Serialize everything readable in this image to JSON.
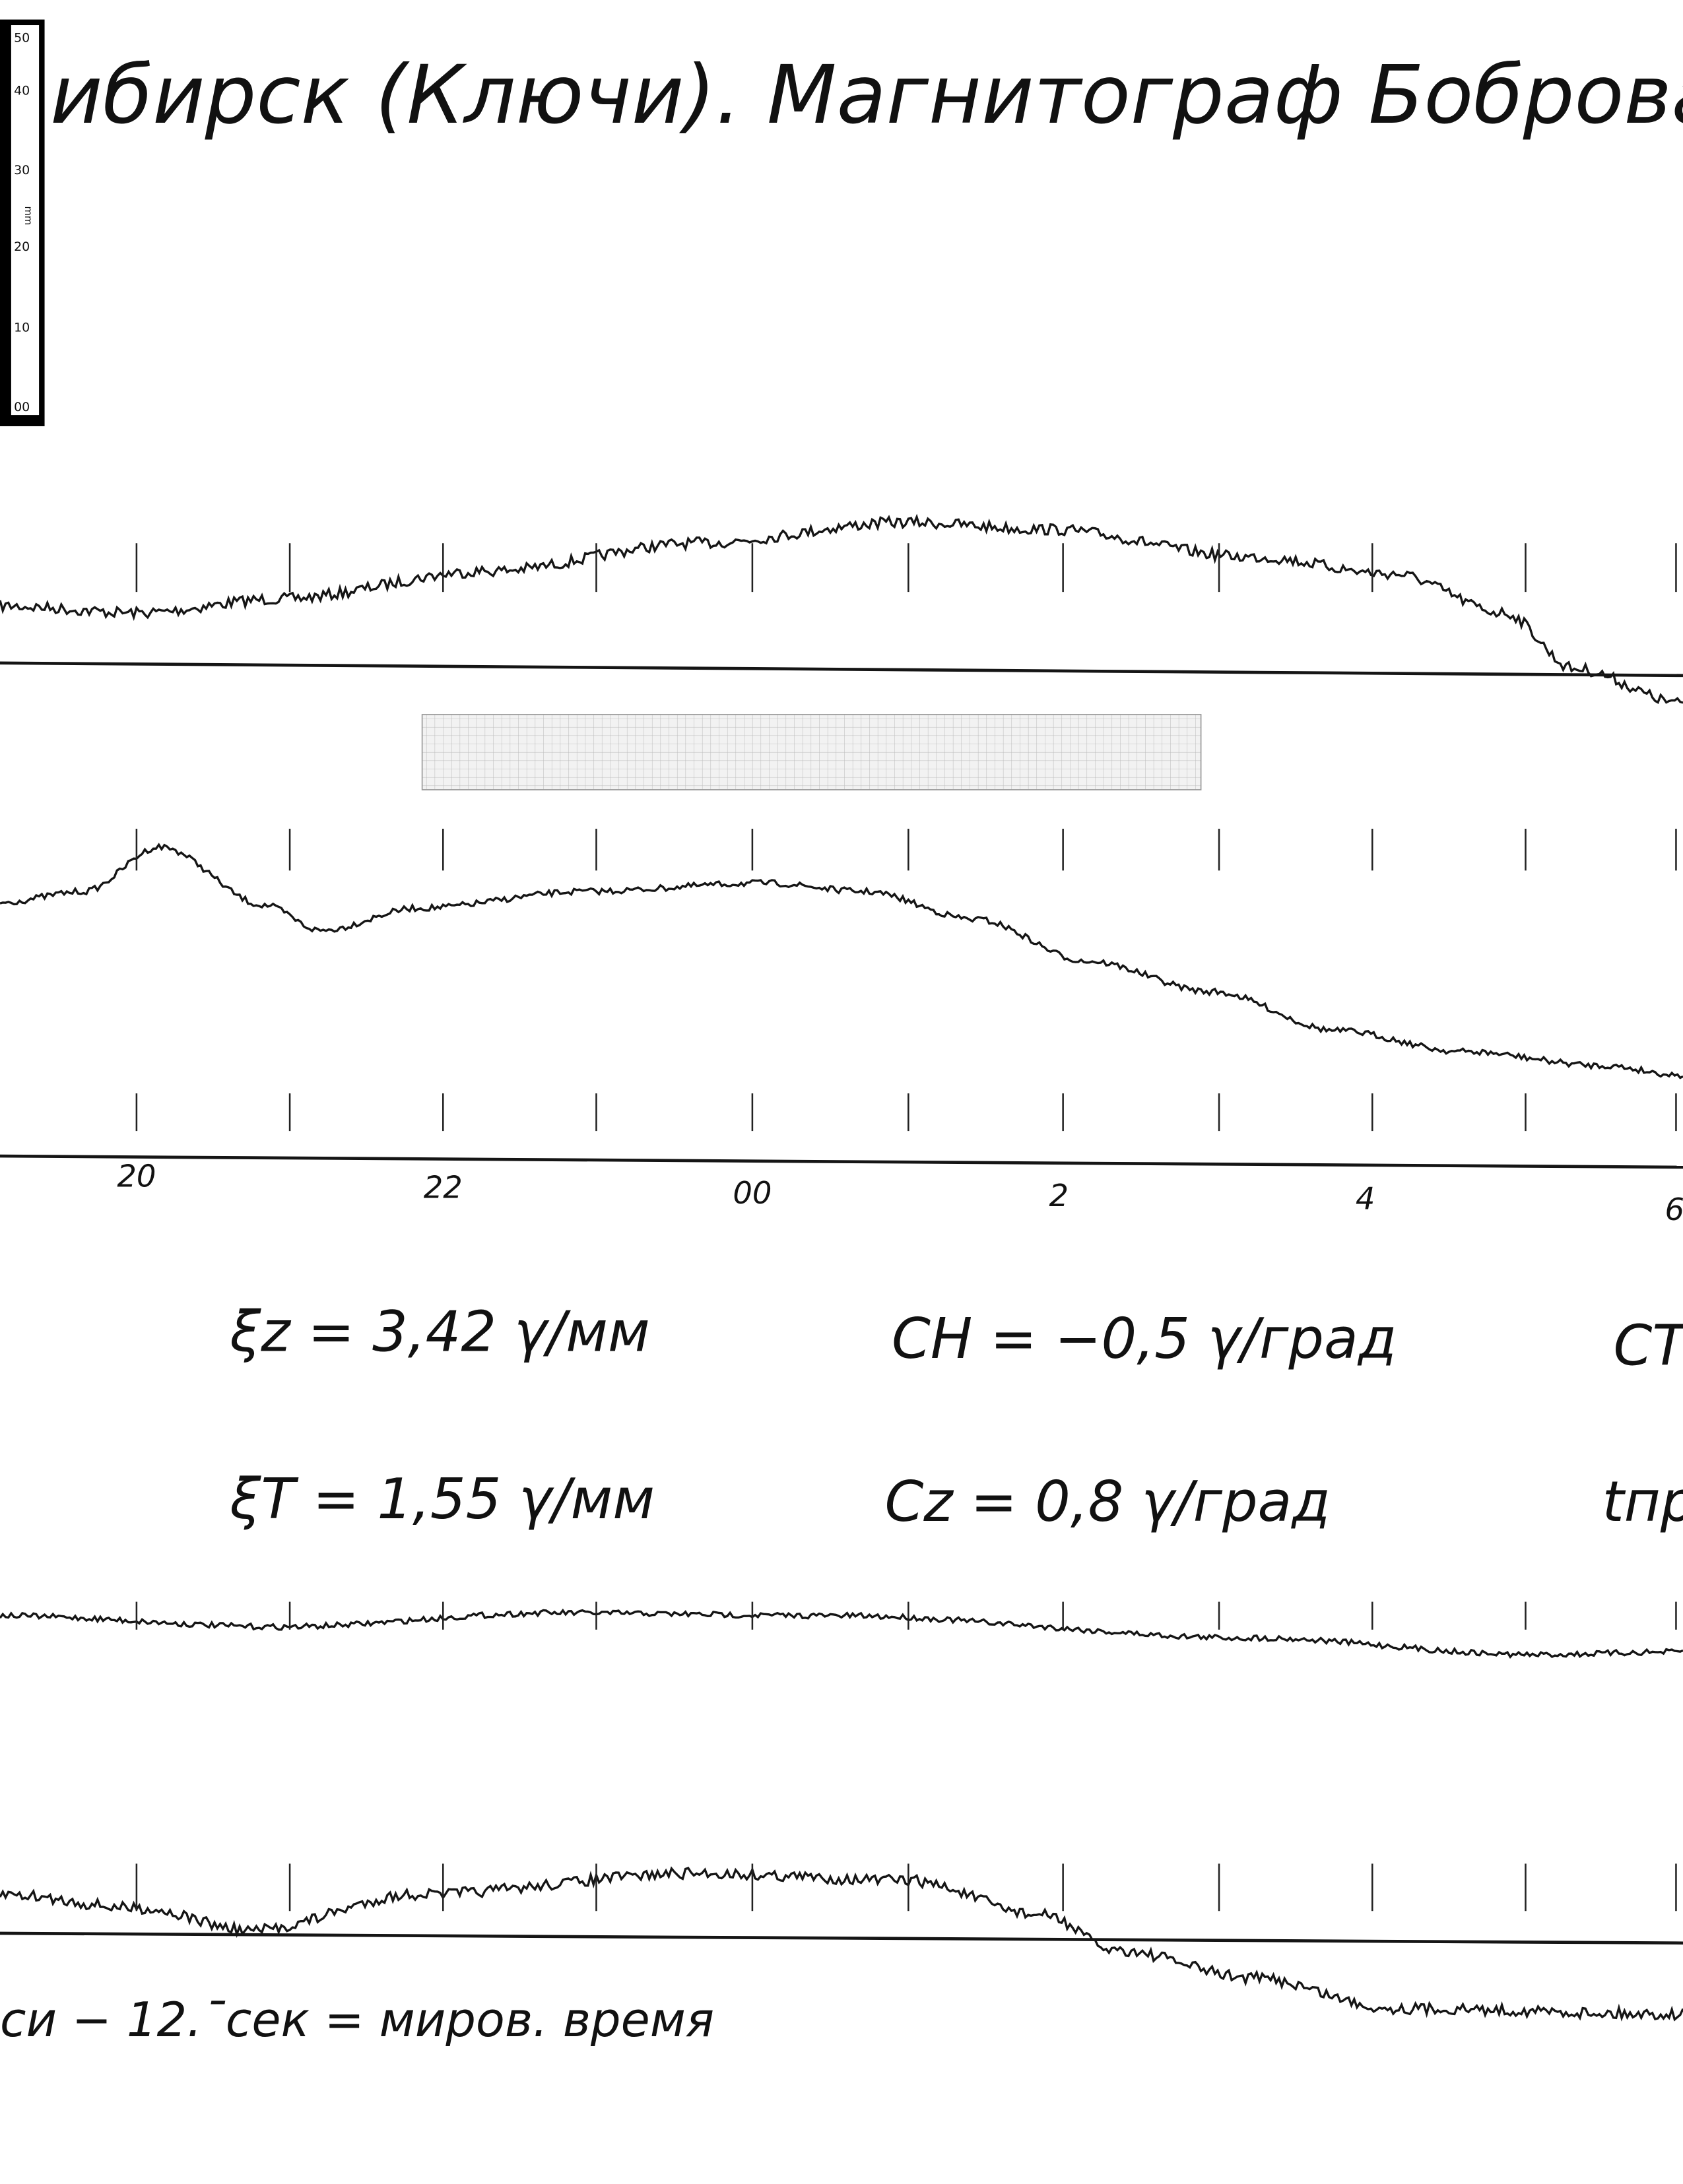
{
  "header": {
    "title": "ибирск (Ключи). Магнитограф Боброва I."
  },
  "ruler": {
    "labels": [
      "50",
      "40",
      "30",
      "20",
      "10",
      "00"
    ],
    "unit": "mm"
  },
  "time_labels": [
    "20",
    "22",
    "00",
    "2",
    "4",
    "6"
  ],
  "constants": {
    "row1": [
      "ξz = 3,42 γ/мм",
      "CH = −0,5 γ/град",
      "CT ="
    ],
    "row2": [
      "ξT = 1,55 γ/мм",
      "Cz = 0,8 γ/град",
      "tпр"
    ]
  },
  "footer": "си − 12.ˉсек = миров. время"
}
